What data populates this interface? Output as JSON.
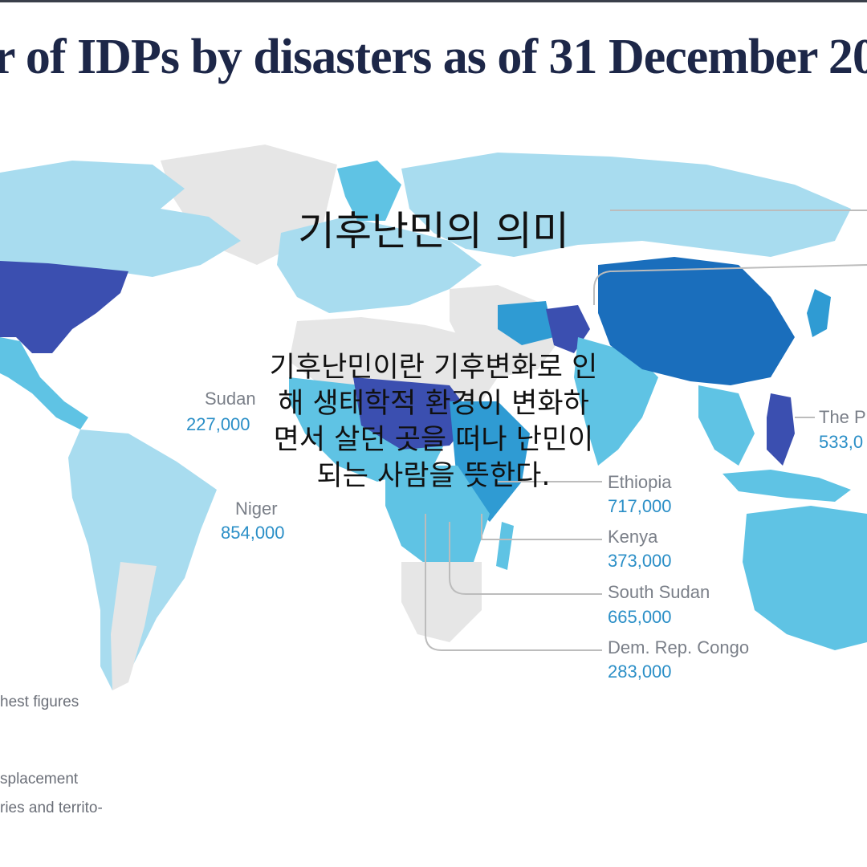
{
  "map": {
    "title": "r of IDPs by disasters as of 31 December 20",
    "colors": {
      "ocean": "#ffffff",
      "land_no_data": "#e6e6e6",
      "tier1": "#a8dcef",
      "tier2": "#5fc3e4",
      "tier3": "#2f9bd3",
      "tier4": "#1a6ebc",
      "tier5": "#3b4fb0"
    },
    "callouts": [
      {
        "id": "sudan",
        "name": "Sudan",
        "value": "227,000"
      },
      {
        "id": "niger",
        "name": "Niger",
        "value": "854,000"
      },
      {
        "id": "ethiopia",
        "name": "Ethiopia",
        "value": "717,000"
      },
      {
        "id": "kenya",
        "name": "Kenya",
        "value": "373,000"
      },
      {
        "id": "south-sudan",
        "name": "South Sudan",
        "value": "665,000"
      },
      {
        "id": "drc",
        "name": "Dem. Rep. Congo",
        "value": "283,000"
      },
      {
        "id": "philippines",
        "name": "The P",
        "value": "533,0"
      }
    ],
    "legend": {
      "line1": "hest figures",
      "line2": "splacement",
      "line3": "ries and territo-"
    }
  },
  "overlay": {
    "title": "기후난민의 의미",
    "body_lines": [
      "기후난민이란 기후변화로 인",
      "해 생태학적 환경이 변화하",
      "면서 살던 곳을 떠나 난민이",
      "되는 사람을 뜻한다."
    ]
  }
}
